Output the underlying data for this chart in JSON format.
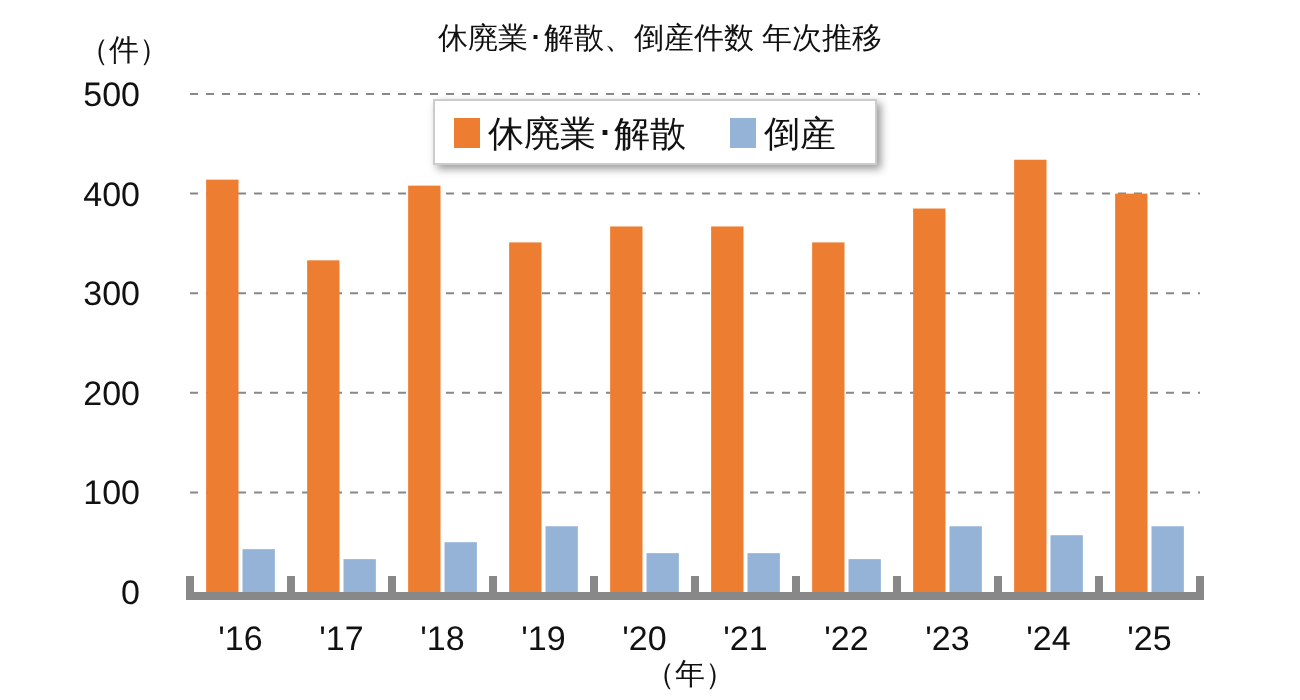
{
  "chart_data": {
    "type": "bar",
    "title": "休廃業･解散、倒産件数 年次推移",
    "ylabel": "（件）",
    "xlabel": "（年）",
    "categories": [
      "'16",
      "'17",
      "'18",
      "'19",
      "'20",
      "'21",
      "'22",
      "'23",
      "'24",
      "'25"
    ],
    "series": [
      {
        "name": "休廃業･解散",
        "color": "#ed7d31",
        "values": [
          414,
          333,
          408,
          351,
          367,
          367,
          351,
          385,
          434,
          400
        ]
      },
      {
        "name": "倒産",
        "color": "#95b3d7",
        "values": [
          43,
          33,
          50,
          66,
          39,
          39,
          33,
          66,
          57,
          66
        ]
      }
    ],
    "ylim": [
      0,
      500
    ],
    "yticks": [
      0,
      100,
      200,
      300,
      400,
      500
    ],
    "grid": "y",
    "legend": "top"
  }
}
